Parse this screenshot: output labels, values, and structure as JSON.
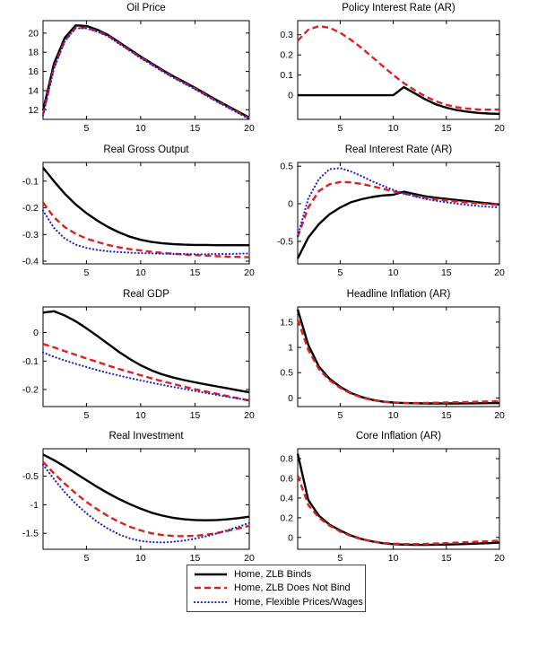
{
  "figure": {
    "background": "#ffffff"
  },
  "legend": {
    "items": [
      {
        "label": "Home, ZLB Binds",
        "style": "solid",
        "color": "#000000"
      },
      {
        "label": "Home, ZLB Does Not Bind",
        "style": "dashed",
        "color": "#dd2020"
      },
      {
        "label": "Home, Flexible Prices/Wages",
        "style": "dotted",
        "color": "#2222cc"
      }
    ]
  },
  "chart_data": [
    {
      "type": "line",
      "title": "Oil Price",
      "x": [
        1,
        2,
        3,
        4,
        5,
        6,
        7,
        8,
        9,
        10,
        11,
        12,
        13,
        14,
        15,
        16,
        17,
        18,
        19,
        20
      ],
      "xlim": [
        1,
        20
      ],
      "xticks": [
        5,
        10,
        15,
        20
      ],
      "xtick_labels": [
        "5",
        "10",
        "15",
        "20"
      ],
      "ylim": [
        11,
        21.3
      ],
      "yticks": [
        12,
        14,
        16,
        18,
        20
      ],
      "ytick_labels": [
        "12",
        "14",
        "16",
        "18",
        "20"
      ],
      "grid": false,
      "series": [
        {
          "name": "Home, ZLB Binds",
          "style": "solid",
          "color": "#000000",
          "values": [
            11.9,
            16.8,
            19.5,
            20.8,
            20.75,
            20.35,
            19.8,
            19.05,
            18.3,
            17.55,
            16.85,
            16.15,
            15.5,
            14.9,
            14.3,
            13.65,
            13.0,
            12.4,
            11.8,
            11.2
          ]
        },
        {
          "name": "Home, ZLB Does Not Bind",
          "style": "dashed",
          "color": "#dd2020",
          "values": [
            11.5,
            16.4,
            19.2,
            20.55,
            20.55,
            20.2,
            19.7,
            18.95,
            18.2,
            17.45,
            16.75,
            16.05,
            15.4,
            14.8,
            14.2,
            13.55,
            12.9,
            12.3,
            11.7,
            11.1
          ]
        },
        {
          "name": "Home, Flexible Prices/Wages",
          "style": "dotted",
          "color": "#2222cc",
          "values": [
            11.4,
            16.3,
            19.15,
            20.5,
            20.5,
            20.15,
            19.65,
            18.9,
            18.15,
            17.4,
            16.7,
            16.0,
            15.35,
            14.75,
            14.15,
            13.5,
            12.85,
            12.25,
            11.65,
            11.05
          ]
        }
      ]
    },
    {
      "type": "line",
      "title": "Policy Interest Rate (AR)",
      "x": [
        1,
        2,
        3,
        4,
        5,
        6,
        7,
        8,
        9,
        10,
        11,
        12,
        13,
        14,
        15,
        16,
        17,
        18,
        19,
        20
      ],
      "xlim": [
        1,
        20
      ],
      "xticks": [
        5,
        10,
        15,
        20
      ],
      "xtick_labels": [
        "5",
        "10",
        "15",
        "20"
      ],
      "ylim": [
        -0.12,
        0.37
      ],
      "yticks": [
        0,
        0.1,
        0.2,
        0.3
      ],
      "ytick_labels": [
        "0",
        "0.1",
        "0.2",
        "0.3"
      ],
      "grid": false,
      "series": [
        {
          "name": "Home, ZLB Binds",
          "style": "solid",
          "color": "#000000",
          "values": [
            0,
            0,
            0,
            0,
            0,
            0,
            0,
            0,
            0,
            0,
            0.04,
            0.01,
            -0.02,
            -0.045,
            -0.062,
            -0.074,
            -0.082,
            -0.088,
            -0.091,
            -0.093
          ]
        },
        {
          "name": "Home, ZLB Does Not Bind",
          "style": "dashed",
          "color": "#dd2020",
          "values": [
            0.27,
            0.325,
            0.343,
            0.335,
            0.31,
            0.275,
            0.235,
            0.19,
            0.145,
            0.1,
            0.06,
            0.025,
            -0.005,
            -0.03,
            -0.048,
            -0.06,
            -0.067,
            -0.071,
            -0.072,
            -0.071
          ]
        }
      ]
    },
    {
      "type": "line",
      "title": "Real Gross Output",
      "x": [
        1,
        2,
        3,
        4,
        5,
        6,
        7,
        8,
        9,
        10,
        11,
        12,
        13,
        14,
        15,
        16,
        17,
        18,
        19,
        20
      ],
      "xlim": [
        1,
        20
      ],
      "xticks": [
        5,
        10,
        15,
        20
      ],
      "xtick_labels": [
        "5",
        "10",
        "15",
        "20"
      ],
      "ylim": [
        -0.41,
        -0.03
      ],
      "yticks": [
        -0.4,
        -0.3,
        -0.2,
        -0.1
      ],
      "ytick_labels": [
        "-0.4",
        "-0.3",
        "-0.2",
        "-0.1"
      ],
      "grid": false,
      "series": [
        {
          "name": "Home, ZLB Binds",
          "style": "solid",
          "color": "#000000",
          "values": [
            -0.05,
            -0.1,
            -0.147,
            -0.187,
            -0.22,
            -0.248,
            -0.272,
            -0.292,
            -0.308,
            -0.32,
            -0.328,
            -0.333,
            -0.336,
            -0.338,
            -0.339,
            -0.339,
            -0.34,
            -0.34,
            -0.34,
            -0.34
          ]
        },
        {
          "name": "Home, ZLB Does Not Bind",
          "style": "dashed",
          "color": "#dd2020",
          "values": [
            -0.18,
            -0.235,
            -0.272,
            -0.297,
            -0.315,
            -0.328,
            -0.339,
            -0.348,
            -0.355,
            -0.36,
            -0.365,
            -0.369,
            -0.372,
            -0.375,
            -0.377,
            -0.379,
            -0.381,
            -0.383,
            -0.384,
            -0.385
          ]
        },
        {
          "name": "Home, Flexible Prices/Wages",
          "style": "dotted",
          "color": "#2222cc",
          "values": [
            -0.21,
            -0.275,
            -0.315,
            -0.338,
            -0.35,
            -0.358,
            -0.363,
            -0.366,
            -0.368,
            -0.37,
            -0.371,
            -0.372,
            -0.373,
            -0.373,
            -0.374,
            -0.374,
            -0.373,
            -0.373,
            -0.372,
            -0.371
          ]
        }
      ]
    },
    {
      "type": "line",
      "title": "Real Interest Rate (AR)",
      "x": [
        1,
        2,
        3,
        4,
        5,
        6,
        7,
        8,
        9,
        10,
        11,
        12,
        13,
        14,
        15,
        16,
        17,
        18,
        19,
        20
      ],
      "xlim": [
        1,
        20
      ],
      "xticks": [
        5,
        10,
        15,
        20
      ],
      "xtick_labels": [
        "5",
        "10",
        "15",
        "20"
      ],
      "ylim": [
        -0.8,
        0.55
      ],
      "yticks": [
        -0.5,
        0,
        0.5
      ],
      "ytick_labels": [
        "-0.5",
        "0",
        "0.5"
      ],
      "grid": false,
      "series": [
        {
          "name": "Home, ZLB Binds",
          "style": "solid",
          "color": "#000000",
          "values": [
            -0.73,
            -0.45,
            -0.27,
            -0.14,
            -0.05,
            0.02,
            0.06,
            0.09,
            0.11,
            0.12,
            0.16,
            0.13,
            0.1,
            0.08,
            0.065,
            0.05,
            0.035,
            0.02,
            0.005,
            -0.01
          ]
        },
        {
          "name": "Home, ZLB Does Not Bind",
          "style": "dashed",
          "color": "#dd2020",
          "values": [
            -0.44,
            -0.05,
            0.17,
            0.26,
            0.29,
            0.285,
            0.265,
            0.235,
            0.2,
            0.165,
            0.135,
            0.105,
            0.08,
            0.06,
            0.045,
            0.03,
            0.015,
            0.005,
            -0.005,
            -0.015
          ]
        },
        {
          "name": "Home, Flexible Prices/Wages",
          "style": "dotted",
          "color": "#2222cc",
          "values": [
            -0.43,
            0.07,
            0.33,
            0.46,
            0.475,
            0.43,
            0.37,
            0.3,
            0.24,
            0.185,
            0.14,
            0.1,
            0.065,
            0.04,
            0.02,
            0.0,
            -0.015,
            -0.03,
            -0.04,
            -0.05
          ]
        }
      ]
    },
    {
      "type": "line",
      "title": "Real GDP",
      "x": [
        1,
        2,
        3,
        4,
        5,
        6,
        7,
        8,
        9,
        10,
        11,
        12,
        13,
        14,
        15,
        16,
        17,
        18,
        19,
        20
      ],
      "xlim": [
        1,
        20
      ],
      "xticks": [
        5,
        10,
        15,
        20
      ],
      "xtick_labels": [
        "5",
        "10",
        "15",
        "20"
      ],
      "ylim": [
        -0.26,
        0.09
      ],
      "yticks": [
        -0.2,
        -0.1,
        0
      ],
      "ytick_labels": [
        "-0.2",
        "-0.1",
        "0"
      ],
      "grid": false,
      "series": [
        {
          "name": "Home, ZLB Binds",
          "style": "solid",
          "color": "#000000",
          "values": [
            0.07,
            0.075,
            0.06,
            0.04,
            0.015,
            -0.012,
            -0.04,
            -0.068,
            -0.093,
            -0.115,
            -0.133,
            -0.147,
            -0.158,
            -0.167,
            -0.175,
            -0.182,
            -0.189,
            -0.196,
            -0.203,
            -0.21
          ]
        },
        {
          "name": "Home, ZLB Does Not Bind",
          "style": "dashed",
          "color": "#dd2020",
          "values": [
            -0.04,
            -0.052,
            -0.065,
            -0.078,
            -0.091,
            -0.103,
            -0.116,
            -0.128,
            -0.139,
            -0.15,
            -0.161,
            -0.171,
            -0.181,
            -0.19,
            -0.199,
            -0.207,
            -0.215,
            -0.223,
            -0.231,
            -0.239
          ]
        },
        {
          "name": "Home, Flexible Prices/Wages",
          "style": "dotted",
          "color": "#2222cc",
          "values": [
            -0.07,
            -0.085,
            -0.098,
            -0.11,
            -0.121,
            -0.132,
            -0.142,
            -0.151,
            -0.16,
            -0.168,
            -0.176,
            -0.184,
            -0.191,
            -0.198,
            -0.205,
            -0.212,
            -0.219,
            -0.226,
            -0.232,
            -0.238
          ]
        }
      ]
    },
    {
      "type": "line",
      "title": "Headline Inflation (AR)",
      "x": [
        1,
        2,
        3,
        4,
        5,
        6,
        7,
        8,
        9,
        10,
        11,
        12,
        13,
        14,
        15,
        16,
        17,
        18,
        19,
        20
      ],
      "xlim": [
        1,
        20
      ],
      "xticks": [
        5,
        10,
        15,
        20
      ],
      "xtick_labels": [
        "5",
        "10",
        "15",
        "20"
      ],
      "ylim": [
        -0.17,
        1.8
      ],
      "yticks": [
        0,
        0.5,
        1,
        1.5
      ],
      "ytick_labels": [
        "0",
        "0.5",
        "1",
        "1.5"
      ],
      "grid": false,
      "series": [
        {
          "name": "Home, ZLB Binds",
          "style": "solid",
          "color": "#000000",
          "values": [
            1.75,
            1.05,
            0.62,
            0.38,
            0.22,
            0.1,
            0.02,
            -0.035,
            -0.07,
            -0.09,
            -0.1,
            -0.105,
            -0.107,
            -0.108,
            -0.108,
            -0.107,
            -0.106,
            -0.104,
            -0.102,
            -0.1
          ]
        },
        {
          "name": "Home, ZLB Does Not Bind",
          "style": "dashed",
          "color": "#dd2020",
          "values": [
            1.55,
            0.95,
            0.57,
            0.35,
            0.2,
            0.09,
            0.01,
            -0.04,
            -0.072,
            -0.09,
            -0.098,
            -0.1,
            -0.098,
            -0.094,
            -0.09,
            -0.085,
            -0.08,
            -0.074,
            -0.068,
            -0.062
          ]
        }
      ]
    },
    {
      "type": "line",
      "title": "Real Investment",
      "x": [
        1,
        2,
        3,
        4,
        5,
        6,
        7,
        8,
        9,
        10,
        11,
        12,
        13,
        14,
        15,
        16,
        17,
        18,
        19,
        20
      ],
      "xlim": [
        1,
        20
      ],
      "xticks": [
        5,
        10,
        15,
        20
      ],
      "xtick_labels": [
        "5",
        "10",
        "15",
        "20"
      ],
      "ylim": [
        -1.78,
        -0.02
      ],
      "yticks": [
        -1.5,
        -1,
        -0.5
      ],
      "ytick_labels": [
        "-1.5",
        "-1",
        "-0.5"
      ],
      "grid": false,
      "series": [
        {
          "name": "Home, ZLB Binds",
          "style": "solid",
          "color": "#000000",
          "values": [
            -0.12,
            -0.22,
            -0.33,
            -0.45,
            -0.57,
            -0.69,
            -0.8,
            -0.9,
            -0.99,
            -1.07,
            -1.14,
            -1.19,
            -1.23,
            -1.255,
            -1.268,
            -1.272,
            -1.268,
            -1.255,
            -1.235,
            -1.21
          ]
        },
        {
          "name": "Home, ZLB Does Not Bind",
          "style": "dashed",
          "color": "#dd2020",
          "values": [
            -0.25,
            -0.45,
            -0.63,
            -0.8,
            -0.95,
            -1.08,
            -1.2,
            -1.3,
            -1.385,
            -1.45,
            -1.5,
            -1.53,
            -1.548,
            -1.552,
            -1.545,
            -1.525,
            -1.495,
            -1.458,
            -1.415,
            -1.37
          ]
        },
        {
          "name": "Home, Flexible Prices/Wages",
          "style": "dotted",
          "color": "#2222cc",
          "values": [
            -0.3,
            -0.55,
            -0.78,
            -0.98,
            -1.15,
            -1.3,
            -1.42,
            -1.52,
            -1.59,
            -1.635,
            -1.655,
            -1.66,
            -1.65,
            -1.628,
            -1.595,
            -1.553,
            -1.503,
            -1.447,
            -1.385,
            -1.32
          ]
        }
      ]
    },
    {
      "type": "line",
      "title": "Core Inflation (AR)",
      "x": [
        1,
        2,
        3,
        4,
        5,
        6,
        7,
        8,
        9,
        10,
        11,
        12,
        13,
        14,
        15,
        16,
        17,
        18,
        19,
        20
      ],
      "xlim": [
        1,
        20
      ],
      "xticks": [
        5,
        10,
        15,
        20
      ],
      "xtick_labels": [
        "5",
        "10",
        "15",
        "20"
      ],
      "ylim": [
        -0.12,
        0.9
      ],
      "yticks": [
        0,
        0.2,
        0.4,
        0.6,
        0.8
      ],
      "ytick_labels": [
        "0",
        "0.2",
        "0.4",
        "0.6",
        "0.8"
      ],
      "grid": false,
      "series": [
        {
          "name": "Home, ZLB Binds",
          "style": "solid",
          "color": "#000000",
          "values": [
            0.85,
            0.38,
            0.22,
            0.13,
            0.07,
            0.02,
            -0.015,
            -0.04,
            -0.058,
            -0.068,
            -0.073,
            -0.075,
            -0.075,
            -0.074,
            -0.072,
            -0.069,
            -0.066,
            -0.062,
            -0.058,
            -0.053
          ]
        },
        {
          "name": "Home, ZLB Does Not Bind",
          "style": "dashed",
          "color": "#dd2020",
          "values": [
            0.63,
            0.33,
            0.2,
            0.12,
            0.06,
            0.015,
            -0.018,
            -0.04,
            -0.055,
            -0.063,
            -0.067,
            -0.067,
            -0.065,
            -0.062,
            -0.058,
            -0.053,
            -0.048,
            -0.043,
            -0.038,
            -0.032
          ]
        }
      ]
    }
  ]
}
